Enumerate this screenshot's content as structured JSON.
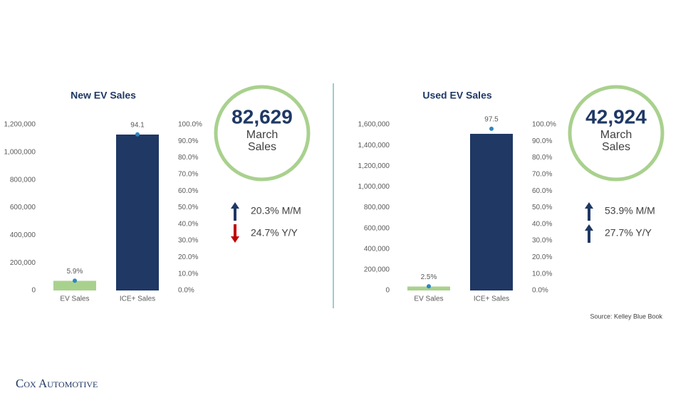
{
  "chart_data": [
    {
      "type": "bar",
      "title": "New EV Sales",
      "categories": [
        "EV Sales",
        "ICE+ Sales"
      ],
      "series": [
        {
          "type": "bar",
          "colors": [
            "#a9d18e",
            "#1f3864"
          ],
          "values": [
            70000,
            1128000
          ]
        },
        {
          "type": "scatter",
          "axis": "y2",
          "color": "#2e86c1",
          "values": [
            5.9,
            94.1
          ],
          "value_labels": [
            "5.9%",
            "94.1"
          ]
        }
      ],
      "ylim": [
        0,
        1200000
      ],
      "yticks": [
        0,
        {
          "value": 200000,
          "label": "200,000"
        },
        {
          "value": 400000,
          "label": "400,000"
        },
        {
          "value": 600000,
          "label": "600,000"
        },
        {
          "value": 800000,
          "label": "800,000"
        },
        {
          "value": 1000000,
          "label": "1,000,000"
        },
        {
          "value": 1200000,
          "label": "1,200,000"
        }
      ],
      "y2lim": [
        0,
        100
      ],
      "y2ticks": [
        {
          "value": 0,
          "label": "0.0%"
        },
        {
          "value": 10,
          "label": "10.0%"
        },
        {
          "value": 20,
          "label": "20.0%"
        },
        {
          "value": 30,
          "label": "30.0%"
        },
        {
          "value": 40,
          "label": "40.0%"
        },
        {
          "value": 50,
          "label": "50.0%"
        },
        {
          "value": 60,
          "label": "60.0%"
        },
        {
          "value": 70,
          "label": "70.0%"
        },
        {
          "value": 80,
          "label": "80.0%"
        },
        {
          "value": 90,
          "label": "90.0%"
        },
        {
          "value": 100,
          "label": "100.0%"
        }
      ],
      "headline": "82,629",
      "headline_label": [
        "March",
        "Sales"
      ],
      "changes": [
        {
          "text": "20.3% M/M",
          "direction": "up"
        },
        {
          "text": "24.7% Y/Y",
          "direction": "down"
        }
      ]
    },
    {
      "type": "bar",
      "title": "Used EV Sales",
      "categories": [
        "EV Sales",
        "ICE+ Sales"
      ],
      "series": [
        {
          "type": "bar",
          "colors": [
            "#a9d18e",
            "#1f3864"
          ],
          "values": [
            38000,
            1511000
          ]
        },
        {
          "type": "scatter",
          "axis": "y2",
          "color": "#2e86c1",
          "values": [
            2.5,
            97.5
          ],
          "value_labels": [
            "2.5%",
            "97.5"
          ]
        }
      ],
      "ylim": [
        0,
        1600000
      ],
      "yticks": [
        0,
        {
          "value": 200000,
          "label": "200,000"
        },
        {
          "value": 400000,
          "label": "400,000"
        },
        {
          "value": 600000,
          "label": "600,000"
        },
        {
          "value": 800000,
          "label": "800,000"
        },
        {
          "value": 1000000,
          "label": "1,000,000"
        },
        {
          "value": 1200000,
          "label": "1,200,000"
        },
        {
          "value": 1400000,
          "label": "1,400,000"
        },
        {
          "value": 1600000,
          "label": "1,600,000"
        }
      ],
      "y2lim": [
        0,
        100
      ],
      "y2ticks": [
        {
          "value": 0,
          "label": "0.0%"
        },
        {
          "value": 10,
          "label": "10.0%"
        },
        {
          "value": 20,
          "label": "20.0%"
        },
        {
          "value": 30,
          "label": "30.0%"
        },
        {
          "value": 40,
          "label": "40.0%"
        },
        {
          "value": 50,
          "label": "50.0%"
        },
        {
          "value": 60,
          "label": "60.0%"
        },
        {
          "value": 70,
          "label": "70.0%"
        },
        {
          "value": 80,
          "label": "80.0%"
        },
        {
          "value": 90,
          "label": "90.0%"
        },
        {
          "value": 100,
          "label": "100.0%"
        }
      ],
      "headline": "42,924",
      "headline_label": [
        "March",
        "Sales"
      ],
      "changes": [
        {
          "text": "53.9% M/M",
          "direction": "up"
        },
        {
          "text": "27.7% Y/Y",
          "direction": "up"
        }
      ]
    }
  ],
  "source": "Source: Kelley Blue Book",
  "logo": "Cox Automotive"
}
